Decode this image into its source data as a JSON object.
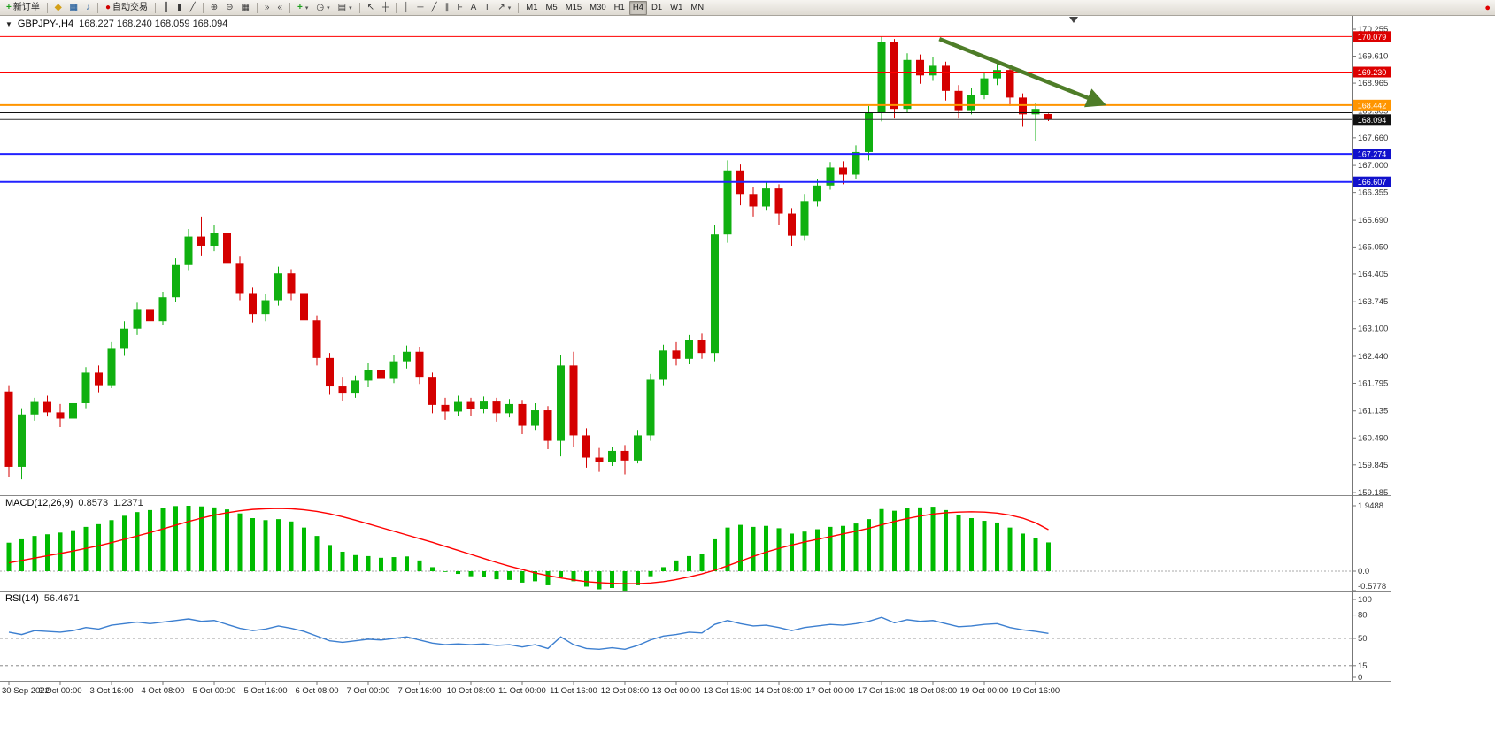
{
  "toolbar": {
    "groups": [
      {
        "name": "order",
        "items": [
          {
            "name": "new-order-button",
            "glyph": "+",
            "glyph_color": "#1a9f1a",
            "label": "新订单"
          }
        ]
      },
      {
        "name": "quick",
        "items": [
          {
            "name": "market-watch-icon",
            "glyph": "◆",
            "glyph_color": "#d4a017"
          },
          {
            "name": "chart-window-button",
            "glyph": "▦",
            "glyph_color": "#3a6ea5"
          },
          {
            "name": "sound-button",
            "glyph": "♪",
            "glyph_color": "#3a6ea5"
          }
        ]
      },
      {
        "name": "autotrade",
        "items": [
          {
            "name": "autotrade-button",
            "glyph": "●",
            "glyph_color": "#d00000",
            "label": "自动交易"
          }
        ]
      },
      {
        "name": "chart-type",
        "items": [
          {
            "name": "bar-chart-button",
            "glyph": "║"
          },
          {
            "name": "candlestick-chart-button",
            "glyph": "▮"
          },
          {
            "name": "line-chart-button",
            "glyph": "╱"
          }
        ]
      },
      {
        "name": "zoom",
        "items": [
          {
            "name": "zoom-in-button",
            "glyph": "⊕"
          },
          {
            "name": "zoom-out-button",
            "glyph": "⊖"
          },
          {
            "name": "tile-windows-button",
            "glyph": "▦"
          }
        ]
      },
      {
        "name": "scroll",
        "items": [
          {
            "name": "auto-scroll-button",
            "glyph": "»"
          },
          {
            "name": "chart-shift-button",
            "glyph": "«"
          }
        ]
      },
      {
        "name": "insert",
        "items": [
          {
            "name": "indicators-button",
            "glyph": "+",
            "glyph_color": "#1a9f1a",
            "caret": true
          },
          {
            "name": "periods-button",
            "glyph": "◷",
            "caret": true
          },
          {
            "name": "templates-button",
            "glyph": "▤",
            "caret": true
          }
        ]
      },
      {
        "name": "pointer",
        "items": [
          {
            "name": "cursor-button",
            "glyph": "↖"
          },
          {
            "name": "crosshair-button",
            "glyph": "┼"
          }
        ]
      },
      {
        "name": "draw",
        "items": [
          {
            "name": "vertical-line-button",
            "glyph": "│"
          },
          {
            "name": "horizontal-line-button",
            "glyph": "─"
          },
          {
            "name": "trendline-button",
            "glyph": "╱"
          },
          {
            "name": "channel-button",
            "glyph": "∥"
          },
          {
            "name": "fibonacci-button",
            "glyph": "F"
          },
          {
            "name": "text-button",
            "glyph": "A"
          },
          {
            "name": "text-label-button",
            "glyph": "T"
          },
          {
            "name": "arrows-button",
            "glyph": "↗",
            "caret": true
          }
        ]
      },
      {
        "name": "timeframes",
        "items": [
          {
            "name": "tf-m1-button",
            "label": "M1"
          },
          {
            "name": "tf-m5-button",
            "label": "M5"
          },
          {
            "name": "tf-m15-button",
            "label": "M15"
          },
          {
            "name": "tf-m30-button",
            "label": "M30"
          },
          {
            "name": "tf-h1-button",
            "label": "H1"
          },
          {
            "name": "tf-h4-button",
            "label": "H4",
            "active": true
          },
          {
            "name": "tf-d1-button",
            "label": "D1"
          },
          {
            "name": "tf-w1-button",
            "label": "W1"
          },
          {
            "name": "tf-mn-button",
            "label": "MN"
          }
        ]
      }
    ],
    "right_icon": {
      "name": "news-alert-icon",
      "glyph": "●",
      "glyph_color": "#e00000"
    }
  },
  "chart_data": {
    "type": "candlestick",
    "symbol": "GBPJPY-",
    "timeframe": "H4",
    "symbol_period": "GBPJPY-,H4",
    "ohlc_text": "168.227 168.240 168.059 168.094",
    "current_quote": {
      "open": 168.227,
      "high": 168.24,
      "low": 168.059,
      "close": 168.094
    },
    "ylim": [
      159.185,
      170.255
    ],
    "candle_up_color": "#10b010",
    "candle_down_color": "#d40000",
    "y_axis_labels": [
      "170.255",
      "169.610",
      "168.965",
      "168.305",
      "167.660",
      "167.000",
      "166.355",
      "165.690",
      "165.050",
      "164.405",
      "163.745",
      "163.100",
      "162.440",
      "161.795",
      "161.135",
      "160.490",
      "159.845",
      "159.185"
    ],
    "x_labels": [
      {
        "i": 0,
        "t": "30 Sep 2022"
      },
      {
        "i": 4,
        "t": "3 Oct 00:00"
      },
      {
        "i": 8,
        "t": "3 Oct 16:00"
      },
      {
        "i": 12,
        "t": "4 Oct 08:00"
      },
      {
        "i": 16,
        "t": "5 Oct 00:00"
      },
      {
        "i": 20,
        "t": "5 Oct 16:00"
      },
      {
        "i": 24,
        "t": "6 Oct 08:00"
      },
      {
        "i": 28,
        "t": "7 Oct 00:00"
      },
      {
        "i": 32,
        "t": "7 Oct 16:00"
      },
      {
        "i": 36,
        "t": "10 Oct 08:00"
      },
      {
        "i": 40,
        "t": "11 Oct 00:00"
      },
      {
        "i": 44,
        "t": "11 Oct 16:00"
      },
      {
        "i": 48,
        "t": "12 Oct 08:00"
      },
      {
        "i": 52,
        "t": "13 Oct 00:00"
      },
      {
        "i": 56,
        "t": "13 Oct 16:00"
      },
      {
        "i": 60,
        "t": "14 Oct 08:00"
      },
      {
        "i": 64,
        "t": "17 Oct 00:00"
      },
      {
        "i": 68,
        "t": "17 Oct 16:00"
      },
      {
        "i": 72,
        "t": "18 Oct 08:00"
      },
      {
        "i": 76,
        "t": "19 Oct 00:00"
      },
      {
        "i": 80,
        "t": "19 Oct 16:00"
      }
    ],
    "hlines": [
      {
        "name": "resistance-line-1",
        "price": 170.079,
        "label": "170.079",
        "line_color": "#ff0000",
        "tag_color": "#dd0000",
        "width": 1
      },
      {
        "name": "resistance-line-2",
        "price": 169.23,
        "label": "169.230",
        "line_color": "#ff0000",
        "tag_color": "#dd0000",
        "width": 1
      },
      {
        "name": "pivot-line",
        "price": 168.442,
        "label": "168.442",
        "line_color": "#ff9500",
        "tag_color": "#ff9500",
        "width": 2
      },
      {
        "name": "support-line-black",
        "price": 168.26,
        "label": null,
        "line_color": "#111111",
        "tag_color": null,
        "width": 1
      },
      {
        "name": "support-line-1",
        "price": 167.274,
        "label": "167.274",
        "line_color": "#2222ff",
        "tag_color": "#1111cc",
        "width": 2
      },
      {
        "name": "support-line-2",
        "price": 166.607,
        "label": "166.607",
        "line_color": "#2222ff",
        "tag_color": "#1111cc",
        "width": 2
      }
    ],
    "bid_line": {
      "price": 168.094,
      "label": "168.094",
      "line_color": "#333333",
      "tag_color": "#111111"
    },
    "trend_arrow": {
      "from_index": 72.5,
      "from_price": 170.02,
      "to_index": 85,
      "to_price": 168.5,
      "color": "#4e7d28"
    },
    "candles": [
      [
        161.6,
        161.75,
        159.55,
        159.8
      ],
      [
        159.8,
        161.2,
        159.5,
        161.05
      ],
      [
        161.05,
        161.45,
        160.9,
        161.35
      ],
      [
        161.35,
        161.5,
        161.0,
        161.1
      ],
      [
        161.1,
        161.3,
        160.75,
        160.95
      ],
      [
        160.95,
        161.45,
        160.85,
        161.32
      ],
      [
        161.32,
        162.18,
        161.2,
        162.05
      ],
      [
        162.05,
        162.22,
        161.58,
        161.75
      ],
      [
        161.75,
        162.78,
        161.68,
        162.62
      ],
      [
        162.62,
        163.28,
        162.45,
        163.1
      ],
      [
        163.1,
        163.72,
        162.95,
        163.55
      ],
      [
        163.55,
        163.78,
        163.08,
        163.28
      ],
      [
        163.28,
        163.98,
        163.18,
        163.85
      ],
      [
        163.85,
        164.78,
        163.75,
        164.62
      ],
      [
        164.62,
        165.48,
        164.5,
        165.3
      ],
      [
        165.3,
        165.78,
        164.85,
        165.08
      ],
      [
        165.08,
        165.58,
        164.95,
        165.38
      ],
      [
        165.38,
        165.92,
        164.48,
        164.65
      ],
      [
        164.65,
        164.82,
        163.78,
        163.95
      ],
      [
        163.95,
        164.08,
        163.25,
        163.45
      ],
      [
        163.45,
        163.92,
        163.28,
        163.78
      ],
      [
        163.78,
        164.58,
        163.65,
        164.42
      ],
      [
        164.42,
        164.52,
        163.78,
        163.95
      ],
      [
        163.95,
        164.05,
        163.12,
        163.3
      ],
      [
        163.3,
        163.42,
        162.22,
        162.4
      ],
      [
        162.4,
        162.52,
        161.52,
        161.72
      ],
      [
        161.72,
        161.95,
        161.38,
        161.55
      ],
      [
        161.55,
        161.98,
        161.45,
        161.86
      ],
      [
        161.86,
        162.28,
        161.7,
        162.12
      ],
      [
        162.12,
        162.32,
        161.72,
        161.9
      ],
      [
        161.9,
        162.48,
        161.8,
        162.32
      ],
      [
        162.32,
        162.7,
        162.15,
        162.55
      ],
      [
        162.55,
        162.65,
        161.78,
        161.95
      ],
      [
        161.95,
        162.05,
        161.08,
        161.28
      ],
      [
        161.28,
        161.45,
        160.92,
        161.12
      ],
      [
        161.12,
        161.5,
        161.02,
        161.35
      ],
      [
        161.35,
        161.45,
        161.02,
        161.18
      ],
      [
        161.18,
        161.48,
        161.08,
        161.36
      ],
      [
        161.36,
        161.45,
        160.88,
        161.08
      ],
      [
        161.08,
        161.42,
        160.98,
        161.3
      ],
      [
        161.3,
        161.4,
        160.58,
        160.78
      ],
      [
        160.78,
        161.32,
        160.68,
        161.15
      ],
      [
        161.15,
        161.25,
        160.22,
        160.42
      ],
      [
        160.42,
        162.48,
        160.05,
        162.22
      ],
      [
        162.22,
        162.55,
        160.28,
        160.55
      ],
      [
        160.55,
        160.72,
        159.78,
        160.02
      ],
      [
        160.02,
        160.25,
        159.68,
        159.92
      ],
      [
        159.92,
        160.28,
        159.82,
        160.18
      ],
      [
        160.18,
        160.32,
        159.62,
        159.95
      ],
      [
        159.95,
        160.68,
        159.88,
        160.55
      ],
      [
        160.55,
        162.02,
        160.42,
        161.88
      ],
      [
        161.88,
        162.72,
        161.75,
        162.58
      ],
      [
        162.58,
        162.78,
        162.22,
        162.38
      ],
      [
        162.38,
        162.95,
        162.25,
        162.82
      ],
      [
        162.82,
        162.98,
        162.38,
        162.52
      ],
      [
        162.52,
        165.58,
        162.32,
        165.35
      ],
      [
        165.35,
        167.12,
        165.15,
        166.88
      ],
      [
        166.88,
        167.02,
        166.05,
        166.32
      ],
      [
        166.32,
        166.48,
        165.78,
        166.02
      ],
      [
        166.02,
        166.62,
        165.92,
        166.45
      ],
      [
        166.45,
        166.55,
        165.58,
        165.85
      ],
      [
        165.85,
        165.98,
        165.08,
        165.32
      ],
      [
        165.32,
        166.32,
        165.22,
        166.15
      ],
      [
        166.15,
        166.68,
        166.02,
        166.52
      ],
      [
        166.52,
        167.08,
        166.42,
        166.95
      ],
      [
        166.95,
        167.1,
        166.55,
        166.78
      ],
      [
        166.78,
        167.48,
        166.68,
        167.32
      ],
      [
        167.32,
        168.42,
        167.12,
        168.25
      ],
      [
        168.25,
        170.08,
        168.05,
        169.95
      ],
      [
        169.95,
        170.02,
        168.12,
        168.35
      ],
      [
        168.35,
        169.68,
        168.25,
        169.52
      ],
      [
        169.52,
        169.65,
        168.95,
        169.15
      ],
      [
        169.15,
        169.58,
        169.02,
        169.38
      ],
      [
        169.38,
        169.48,
        168.55,
        168.78
      ],
      [
        168.78,
        168.92,
        168.12,
        168.32
      ],
      [
        168.32,
        168.85,
        168.22,
        168.68
      ],
      [
        168.68,
        169.22,
        168.58,
        169.08
      ],
      [
        169.08,
        169.42,
        168.92,
        169.28
      ],
      [
        169.28,
        169.35,
        168.42,
        168.62
      ],
      [
        168.62,
        168.72,
        167.92,
        168.22
      ],
      [
        168.22,
        168.48,
        167.58,
        168.35
      ],
      [
        168.227,
        168.24,
        168.059,
        168.094
      ]
    ],
    "macd": {
      "title": "MACD(12,26,9)",
      "value_main": "0.8573",
      "value_signal": "1.2371",
      "hist_color": "#00bb00",
      "signal_color": "#ff0000",
      "scale_labels": [
        {
          "v": 1.9488,
          "t": "1.9488"
        },
        {
          "v": 0,
          "t": "0.0"
        },
        {
          "v": -0.5778,
          "t": "-0.5778"
        }
      ],
      "histogram": [
        0.85,
        0.95,
        1.05,
        1.1,
        1.15,
        1.22,
        1.32,
        1.4,
        1.52,
        1.65,
        1.76,
        1.82,
        1.88,
        1.94,
        1.9488,
        1.93,
        1.9,
        1.84,
        1.72,
        1.58,
        1.52,
        1.55,
        1.48,
        1.3,
        1.05,
        0.78,
        0.58,
        0.48,
        0.45,
        0.4,
        0.42,
        0.44,
        0.32,
        0.12,
        -0.02,
        -0.08,
        -0.15,
        -0.18,
        -0.24,
        -0.26,
        -0.34,
        -0.3,
        -0.42,
        -0.18,
        -0.3,
        -0.46,
        -0.54,
        -0.5,
        -0.5778,
        -0.42,
        -0.15,
        0.12,
        0.32,
        0.45,
        0.52,
        0.95,
        1.3,
        1.38,
        1.32,
        1.35,
        1.28,
        1.12,
        1.18,
        1.25,
        1.32,
        1.35,
        1.42,
        1.55,
        1.85,
        1.8,
        1.88,
        1.9,
        1.92,
        1.82,
        1.68,
        1.58,
        1.5,
        1.45,
        1.3,
        1.12,
        0.98,
        0.8573
      ],
      "signal": [
        0.25,
        0.32,
        0.39,
        0.46,
        0.53,
        0.6,
        0.68,
        0.76,
        0.85,
        0.95,
        1.05,
        1.15,
        1.26,
        1.37,
        1.48,
        1.58,
        1.67,
        1.74,
        1.8,
        1.84,
        1.86,
        1.87,
        1.86,
        1.83,
        1.78,
        1.71,
        1.62,
        1.52,
        1.41,
        1.3,
        1.19,
        1.08,
        0.97,
        0.86,
        0.74,
        0.62,
        0.5,
        0.38,
        0.26,
        0.15,
        0.05,
        -0.05,
        -0.13,
        -0.2,
        -0.26,
        -0.31,
        -0.34,
        -0.36,
        -0.37,
        -0.37,
        -0.35,
        -0.31,
        -0.25,
        -0.17,
        -0.08,
        0.03,
        0.16,
        0.3,
        0.44,
        0.57,
        0.68,
        0.78,
        0.87,
        0.95,
        1.03,
        1.11,
        1.19,
        1.28,
        1.38,
        1.48,
        1.57,
        1.64,
        1.7,
        1.74,
        1.76,
        1.77,
        1.76,
        1.73,
        1.67,
        1.58,
        1.44,
        1.2371
      ]
    },
    "rsi": {
      "title": "RSI(14)",
      "value": "56.4671",
      "line_color": "#3c7fd0",
      "levels": [
        80,
        50,
        15
      ],
      "scale_labels": [
        {
          "v": 100,
          "t": "100"
        },
        {
          "v": 80,
          "t": "80"
        },
        {
          "v": 50,
          "t": "50"
        },
        {
          "v": 15,
          "t": "15"
        },
        {
          "v": 0,
          "t": "0"
        }
      ],
      "values": [
        58,
        55,
        60,
        59,
        58,
        60,
        64,
        62,
        67,
        69,
        71,
        69,
        71,
        73,
        75,
        72,
        73,
        68,
        63,
        60,
        62,
        66,
        63,
        59,
        53,
        47,
        45,
        47,
        49,
        48,
        50,
        52,
        48,
        44,
        42,
        43,
        42,
        43,
        41,
        42,
        39,
        42,
        37,
        52,
        42,
        37,
        36,
        38,
        36,
        41,
        48,
        53,
        55,
        58,
        57,
        68,
        73,
        69,
        66,
        67,
        64,
        60,
        64,
        66,
        68,
        67,
        69,
        72,
        77,
        70,
        74,
        72,
        73,
        69,
        65,
        66,
        68,
        69,
        64,
        61,
        59,
        56.4671
      ]
    }
  }
}
